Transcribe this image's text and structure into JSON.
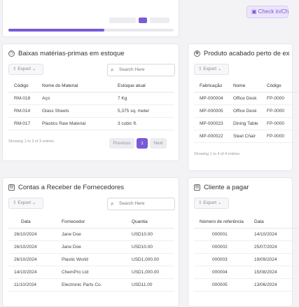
{
  "top_button": {
    "label": "Check in/Ch",
    "icon": "calendar-icon"
  },
  "progress_card": {
    "progress_percent": 58
  },
  "raw_materials": {
    "title": "Baixas matérias-primas em estoque",
    "export_label": "Export",
    "search_placeholder": "Search Here",
    "columns": [
      "Código",
      "Nome do Material",
      "Estoque atual"
    ],
    "rows": [
      [
        "RM-018",
        "Aço",
        "7 Kg"
      ],
      [
        "RM-014",
        "Glass Sheets",
        "5,375 sq. meter"
      ],
      [
        "RM-017",
        "Plastics Raw Material",
        "3 cubic ft."
      ]
    ],
    "info": "Showing 1 to 3 of 3 entries",
    "pager": {
      "prev": "Previous",
      "page": "1",
      "next": "Next"
    }
  },
  "finished_products": {
    "title": "Produto acabado perto de ex",
    "export_label": "Export",
    "columns": [
      "Fabricação",
      "Nome",
      "Código"
    ],
    "rows": [
      [
        "MP-000004",
        "Office Desk",
        "FP-0000"
      ],
      [
        "MP-000005",
        "Office Desk",
        "FP-0000"
      ],
      [
        "MP-000023",
        "Dining Table",
        "FP-0000"
      ],
      [
        "MP-000022",
        "Steel Chair",
        "FP-0000"
      ]
    ],
    "info": "Showing 1 to 4 of 4 entries"
  },
  "supplier_receivables": {
    "title": "Contas a Receber de Fornecedores",
    "export_label": "Export",
    "search_placeholder": "Search Here",
    "columns": [
      "Data",
      "Fornecedor",
      "Quantia"
    ],
    "rows": [
      [
        "26/10/2024",
        "Jane Doe",
        "USD10.00"
      ],
      [
        "26/10/2024",
        "Jane Doe",
        "USD10.00"
      ],
      [
        "26/10/2024",
        "Plastic World",
        "USD1,000.00"
      ],
      [
        "14/10/2024",
        "ChemPro Ltd",
        "USD1,000.00"
      ],
      [
        "11/10/2024",
        "Electronic Parts Co.",
        "USD11.00"
      ]
    ]
  },
  "client_payable": {
    "title": "Cliente a pagar",
    "export_label": "Export",
    "columns": [
      "Número de referência",
      "Data"
    ],
    "rows": [
      [
        "000001",
        "14/10/2024"
      ],
      [
        "000002",
        "25/07/2024"
      ],
      [
        "000003",
        "19/09/2024"
      ],
      [
        "000004",
        "15/08/2024"
      ],
      [
        "000005",
        "13/06/2024"
      ]
    ]
  }
}
